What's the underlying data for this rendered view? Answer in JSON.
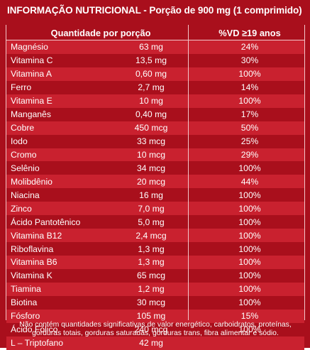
{
  "title": "INFORMAÇÃO NUTRICIONAL - Porção de 900 mg (1 comprimido)",
  "table": {
    "header": {
      "quantity": "Quantidade por porção",
      "vd": "%VD ≥19 anos"
    },
    "rows": [
      {
        "name": "Magnésio",
        "amount": "63 mg",
        "vd": "24%"
      },
      {
        "name": "Vitamina C",
        "amount": "13,5 mg",
        "vd": "30%"
      },
      {
        "name": "Vitamina A",
        "amount": "0,60 mg",
        "vd": "100%"
      },
      {
        "name": "Ferro",
        "amount": "2,7 mg",
        "vd": "14%"
      },
      {
        "name": "Vitamina E",
        "amount": "10 mg",
        "vd": "100%"
      },
      {
        "name": "Manganês",
        "amount": "0,40 mg",
        "vd": "17%"
      },
      {
        "name": "Cobre",
        "amount": "450 mcg",
        "vd": "50%"
      },
      {
        "name": "Iodo",
        "amount": "33 mcg",
        "vd": "25%"
      },
      {
        "name": "Cromo",
        "amount": "10 mcg",
        "vd": "29%"
      },
      {
        "name": "Selênio",
        "amount": "34 mcg",
        "vd": "100%"
      },
      {
        "name": "Molibdênio",
        "amount": "20 mcg",
        "vd": "44%"
      },
      {
        "name": "Niacina",
        "amount": "16 mg",
        "vd": "100%"
      },
      {
        "name": "Zinco",
        "amount": "7,0 mg",
        "vd": "100%"
      },
      {
        "name": "Ácido Pantotênico",
        "amount": "5,0 mg",
        "vd": "100%"
      },
      {
        "name": "Vitamina B12",
        "amount": "2,4 mcg",
        "vd": "100%"
      },
      {
        "name": "Riboflavina",
        "amount": "1,3 mg",
        "vd": "100%"
      },
      {
        "name": "Vitamina B6",
        "amount": "1,3 mg",
        "vd": "100%"
      },
      {
        "name": "Vitamina K",
        "amount": "65 mcg",
        "vd": "100%"
      },
      {
        "name": "Tiamina",
        "amount": "1,2 mg",
        "vd": "100%"
      },
      {
        "name": "Biotina",
        "amount": "30 mcg",
        "vd": "100%"
      },
      {
        "name": "Fósforo",
        "amount": "105 mg",
        "vd": "15%"
      },
      {
        "name": "Ácido Fólico",
        "amount": "240 mcg",
        "vd": "100%"
      },
      {
        "name": "L – Triptofano",
        "amount": "42 mg",
        "vd": ""
      }
    ]
  },
  "footnote": "Não contém quantidades significativas de valor energético, carboidratos, proteínas, gorduras totais, gorduras saturadas, gorduras trans, fibra alimentar e sódio.",
  "colors": {
    "dark_red": "#a90f1c",
    "light_red": "#c9212f",
    "text": "#ffffff"
  }
}
